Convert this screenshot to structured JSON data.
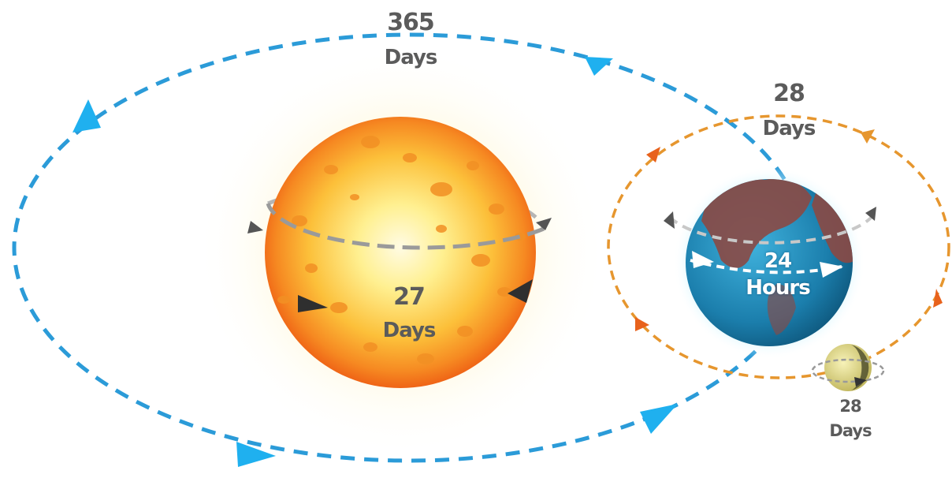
{
  "labels": {
    "earth_orbit": {
      "value": "365",
      "unit": "Days"
    },
    "sun_rotation": {
      "value": "27",
      "unit": "Days"
    },
    "moon_orbit": {
      "value": "28",
      "unit": "Days"
    },
    "earth_rotation": {
      "value": "24",
      "unit": "Hours"
    },
    "moon_rotation": {
      "value": "28",
      "unit": "Days"
    }
  },
  "colors": {
    "earth_orbit": "#2b9bd8",
    "moon_orbit": "#e6962e",
    "sun_core": "#fff6c8",
    "sun_edge": "#f4741c",
    "earth_ocean": "#1f86b8",
    "earth_land": "#8b4a44",
    "earth_glow": "#8fe3ff",
    "moon": "#d8d07a",
    "rotation_path": "#b0b0b0",
    "arrow_dark": "#333333",
    "arrow_orange": "#e8621c"
  }
}
